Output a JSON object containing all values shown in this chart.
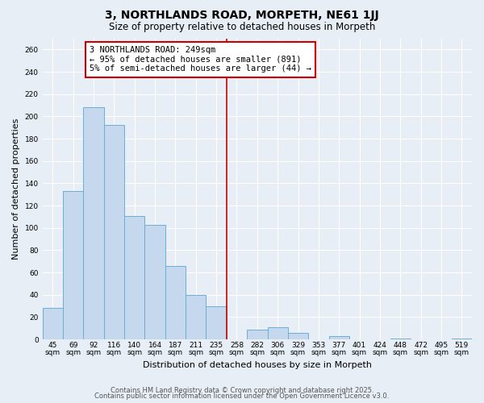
{
  "title": "3, NORTHLANDS ROAD, MORPETH, NE61 1JJ",
  "subtitle": "Size of property relative to detached houses in Morpeth",
  "xlabel": "Distribution of detached houses by size in Morpeth",
  "ylabel": "Number of detached properties",
  "categories": [
    "45sqm",
    "69sqm",
    "92sqm",
    "116sqm",
    "140sqm",
    "164sqm",
    "187sqm",
    "211sqm",
    "235sqm",
    "258sqm",
    "282sqm",
    "306sqm",
    "329sqm",
    "353sqm",
    "377sqm",
    "401sqm",
    "424sqm",
    "448sqm",
    "472sqm",
    "495sqm",
    "519sqm"
  ],
  "values": [
    28,
    133,
    208,
    192,
    111,
    103,
    66,
    40,
    30,
    0,
    9,
    11,
    6,
    0,
    3,
    0,
    0,
    1,
    0,
    0,
    1
  ],
  "bar_color": "#c5d8ee",
  "bar_edge_color": "#6baed6",
  "vline_x_index": 8.5,
  "vline_color": "#cc0000",
  "annotation_text": "3 NORTHLANDS ROAD: 249sqm\n← 95% of detached houses are smaller (891)\n5% of semi-detached houses are larger (44) →",
  "annotation_box_color": "white",
  "annotation_box_edge_color": "#cc0000",
  "ylim": [
    0,
    270
  ],
  "yticks": [
    0,
    20,
    40,
    60,
    80,
    100,
    120,
    140,
    160,
    180,
    200,
    220,
    240,
    260
  ],
  "footer_line1": "Contains HM Land Registry data © Crown copyright and database right 2025.",
  "footer_line2": "Contains public sector information licensed under the Open Government Licence v3.0.",
  "background_color": "#e8eef5",
  "plot_bg_color": "#e8eef5",
  "grid_color": "#ffffff",
  "title_fontsize": 10,
  "subtitle_fontsize": 8.5,
  "tick_fontsize": 6.5,
  "label_fontsize": 8,
  "annotation_fontsize": 7.5,
  "footer_fontsize": 6
}
